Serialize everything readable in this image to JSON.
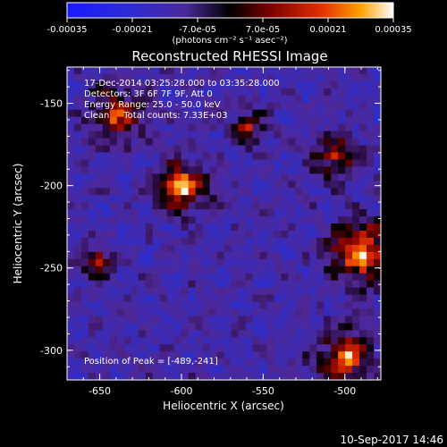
{
  "colorbar": {
    "tick_labels": [
      "-0.00035",
      "-0.00021",
      "-7.0e-05",
      "7.0e-05",
      "0.00021",
      "0.00035"
    ],
    "tick_values": [
      -0.00035,
      -0.00021,
      -7e-05,
      7e-05,
      0.00021,
      0.00035
    ],
    "range": [
      -0.00035,
      0.00035
    ],
    "units_label": "(photons cm⁻² s⁻¹ asec⁻²)"
  },
  "chart_data": {
    "type": "heatmap",
    "title": "Reconstructed RHESSI Image",
    "xlabel": "Heliocentric X (arcsec)",
    "ylabel": "Heliocentric Y (arcsec)",
    "xlim": [
      -670,
      -478
    ],
    "ylim": [
      -318,
      -128
    ],
    "x_ticks": [
      -650,
      -600,
      -550,
      -500
    ],
    "y_ticks": [
      -150,
      -200,
      -250,
      -300
    ],
    "x_tick_labels": [
      "-650",
      "-600",
      "-550",
      "-500"
    ],
    "y_tick_labels": [
      "-150",
      "-200",
      "-250",
      "-300"
    ],
    "sources": [
      {
        "x": -600,
        "y": -201,
        "peak": 0.0003,
        "radius": 10
      },
      {
        "x": -489,
        "y": -241,
        "peak": 0.00035,
        "radius": 12
      },
      {
        "x": -640,
        "y": -157,
        "peak": 0.00018,
        "radius": 11
      },
      {
        "x": -505,
        "y": -183,
        "peak": 0.00016,
        "radius": 9
      },
      {
        "x": -500,
        "y": -305,
        "peak": 0.00022,
        "radius": 12
      },
      {
        "x": -651,
        "y": -246,
        "peak": 0.00012,
        "radius": 7
      },
      {
        "x": -560,
        "y": -165,
        "peak": 8e-05,
        "radius": 8
      }
    ],
    "annotations": [
      "17-Dec-2014 03:25:28.000 to 03:35:28.000",
      "Detectors: 3F 6F 7F 9F, Att 0",
      "Energy Range: 25.0 - 50.0 keV",
      "Clean     Total counts: 7.33E+03"
    ],
    "peak_label": "Position of Peak = [-489,-241]",
    "peak_position": [
      -489,
      -241
    ]
  },
  "footer": {
    "timestamp": "10-Sep-2017 14:46"
  }
}
